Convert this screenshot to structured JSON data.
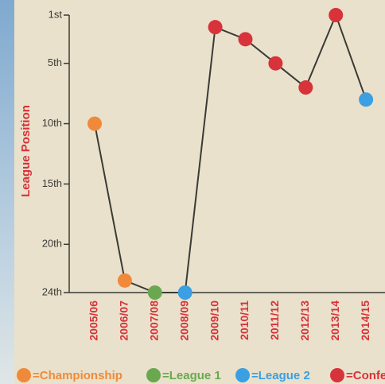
{
  "chart_data": {
    "type": "line",
    "y_label": "League Position",
    "categories": [
      "2005/06",
      "2006/07",
      "2007/08",
      "2008/09",
      "2009/10",
      "2010/11",
      "2011/12",
      "2012/13",
      "2013/14",
      "2014/15"
    ],
    "series": [
      {
        "name": "League Position",
        "color": "#3a3a36",
        "values": [
          10,
          23,
          24,
          24,
          2,
          3,
          5,
          7,
          1,
          8
        ],
        "point_colors": [
          "#f08a3a",
          "#f08a3a",
          "#6aa84f",
          "#3b9fe2",
          "#d8323a",
          "#d8323a",
          "#d8323a",
          "#d8323a",
          "#d8323a",
          "#3b9fe2"
        ]
      }
    ],
    "ylim": [
      1,
      24
    ],
    "y_reversed": true,
    "yticks": [
      {
        "value": 1,
        "label": "1st"
      },
      {
        "value": 5,
        "label": "5th"
      },
      {
        "value": 10,
        "label": "10th"
      },
      {
        "value": 15,
        "label": "15th"
      },
      {
        "value": 20,
        "label": "20th"
      },
      {
        "value": 24,
        "label": "24th"
      }
    ],
    "legend": [
      {
        "label": "=Championship",
        "color": "#f08a3a"
      },
      {
        "label": "=League 1",
        "color": "#6aa84f"
      },
      {
        "label": "=League 2",
        "color": "#3b9fe2"
      },
      {
        "label": "=Conference",
        "color": "#d8323a"
      }
    ]
  }
}
